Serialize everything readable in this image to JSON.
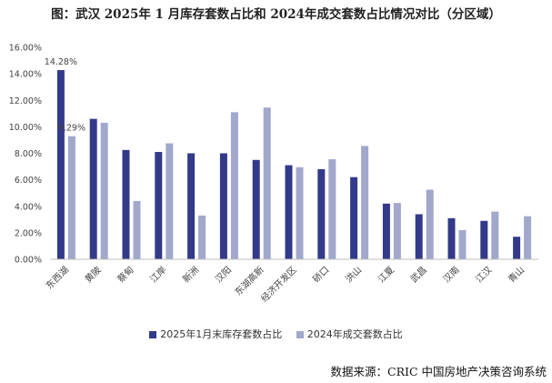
{
  "chart_data": {
    "type": "bar",
    "title": "图：武汉 2025年 1 月库存套数占比和 2024年成交套数占比情况对比（分区域）",
    "categories": [
      "东西湖",
      "黄陂",
      "蔡甸",
      "江岸",
      "新洲",
      "汉阳",
      "东湖高新",
      "经济开发区",
      "硚口",
      "洪山",
      "江夏",
      "武昌",
      "汉南",
      "江汉",
      "青山"
    ],
    "series": [
      {
        "name": "2025年1月末库存套数占比",
        "color": "#333a8a",
        "values": [
          14.28,
          10.6,
          8.25,
          8.1,
          8.0,
          8.0,
          7.5,
          7.1,
          6.8,
          6.2,
          4.2,
          3.4,
          3.1,
          2.9,
          1.7
        ]
      },
      {
        "name": "2024年成交套数占比",
        "color": "#a1a8cc",
        "values": [
          9.29,
          10.3,
          4.4,
          8.75,
          3.3,
          11.1,
          11.45,
          6.95,
          7.55,
          8.55,
          4.25,
          5.25,
          2.2,
          3.6,
          3.25
        ]
      }
    ],
    "data_labels": [
      {
        "series": 0,
        "index": 0,
        "text": "14.28%"
      },
      {
        "series": 1,
        "index": 0,
        "text": "9.29%"
      }
    ],
    "yticks": [
      "0.00%",
      "2.00%",
      "4.00%",
      "6.00%",
      "8.00%",
      "10.00%",
      "12.00%",
      "14.00%",
      "16.00%"
    ],
    "ylim": [
      0,
      16
    ],
    "xlabel": "",
    "ylabel": "",
    "legend_position": "bottom",
    "grid": false
  },
  "source": "数据来源：CRIC 中国房地产决策咨询系统"
}
